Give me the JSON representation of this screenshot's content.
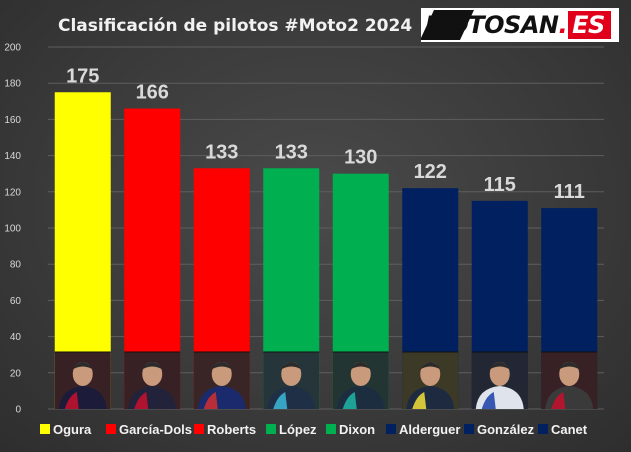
{
  "title": "Clasificación de pilotos #Moto2 2024",
  "logo": {
    "text": "MOTOSAN",
    "dot": ".",
    "tld": "ES"
  },
  "chart_data": {
    "type": "bar",
    "categories": [
      "Ogura",
      "García-Dols",
      "Roberts",
      "López",
      "Dixon",
      "Alderguer",
      "González",
      "Canet"
    ],
    "values": [
      175,
      166,
      133,
      133,
      130,
      122,
      115,
      111
    ],
    "colors": [
      "#ffff00",
      "#ff0000",
      "#ff0000",
      "#00b050",
      "#00b050",
      "#002060",
      "#002060",
      "#002060"
    ],
    "ylim": [
      0,
      200
    ],
    "yticks": [
      0,
      20,
      40,
      60,
      80,
      100,
      120,
      140,
      160,
      180,
      200
    ],
    "grid": true,
    "legend_position": "bottom",
    "rider_photos": [
      {
        "name": "Ogura",
        "suit": "#1c1c3a",
        "accent": "#c8102e"
      },
      {
        "name": "García-Dols",
        "suit": "#22223a",
        "accent": "#c8102e"
      },
      {
        "name": "Roberts",
        "suit": "#1a2a6c",
        "accent": "#d32f2f"
      },
      {
        "name": "López",
        "suit": "#1f2f45",
        "accent": "#3bb8d8"
      },
      {
        "name": "Dixon",
        "suit": "#1c2d3f",
        "accent": "#1fb6a6"
      },
      {
        "name": "Alderguer",
        "suit": "#1e2a40",
        "accent": "#f2e13a"
      },
      {
        "name": "González",
        "suit": "#dfe4ec",
        "accent": "#1a3ea8"
      },
      {
        "name": "Canet",
        "suit": "#3a3a3a",
        "accent": "#c8102e"
      }
    ]
  }
}
